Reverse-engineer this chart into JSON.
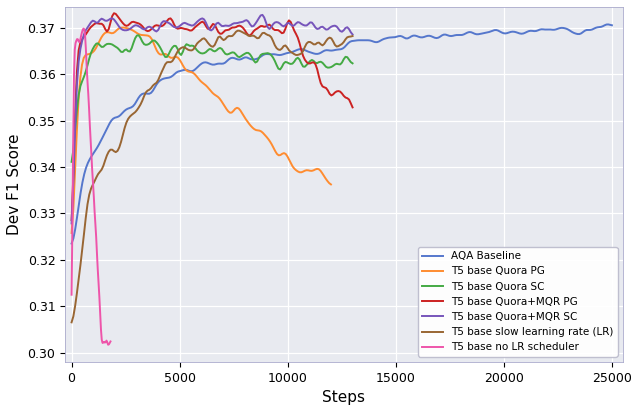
{
  "title": "",
  "xlabel": "Steps",
  "ylabel": "Dev F1 Score",
  "xlim": [
    -300,
    25500
  ],
  "ylim": [
    0.298,
    0.3745
  ],
  "yticks": [
    0.3,
    0.31,
    0.32,
    0.33,
    0.34,
    0.35,
    0.36,
    0.37
  ],
  "xticks": [
    0,
    5000,
    10000,
    15000,
    20000,
    25000
  ],
  "background_color": "#e8eaf0",
  "figure_background": "#ffffff",
  "grid_color": "#ffffff",
  "series": [
    {
      "label": "AQA Baseline",
      "color": "#5577cc",
      "linewidth": 1.4
    },
    {
      "label": "T5 base Quora PG",
      "color": "#ff8c30",
      "linewidth": 1.4
    },
    {
      "label": "T5 base Quora SC",
      "color": "#44aa44",
      "linewidth": 1.4
    },
    {
      "label": "T5 base Quora+MQR PG",
      "color": "#cc2222",
      "linewidth": 1.4
    },
    {
      "label": "T5 base Quora+MQR SC",
      "color": "#7755bb",
      "linewidth": 1.4
    },
    {
      "label": "T5 base slow learning rate (LR)",
      "color": "#996633",
      "linewidth": 1.4
    },
    {
      "label": "T5 base no LR scheduler",
      "color": "#ee55aa",
      "linewidth": 1.4
    }
  ],
  "legend_loc": "lower right",
  "legend_fontsize": 7.5,
  "tick_fontsize": 9,
  "axis_label_fontsize": 11
}
